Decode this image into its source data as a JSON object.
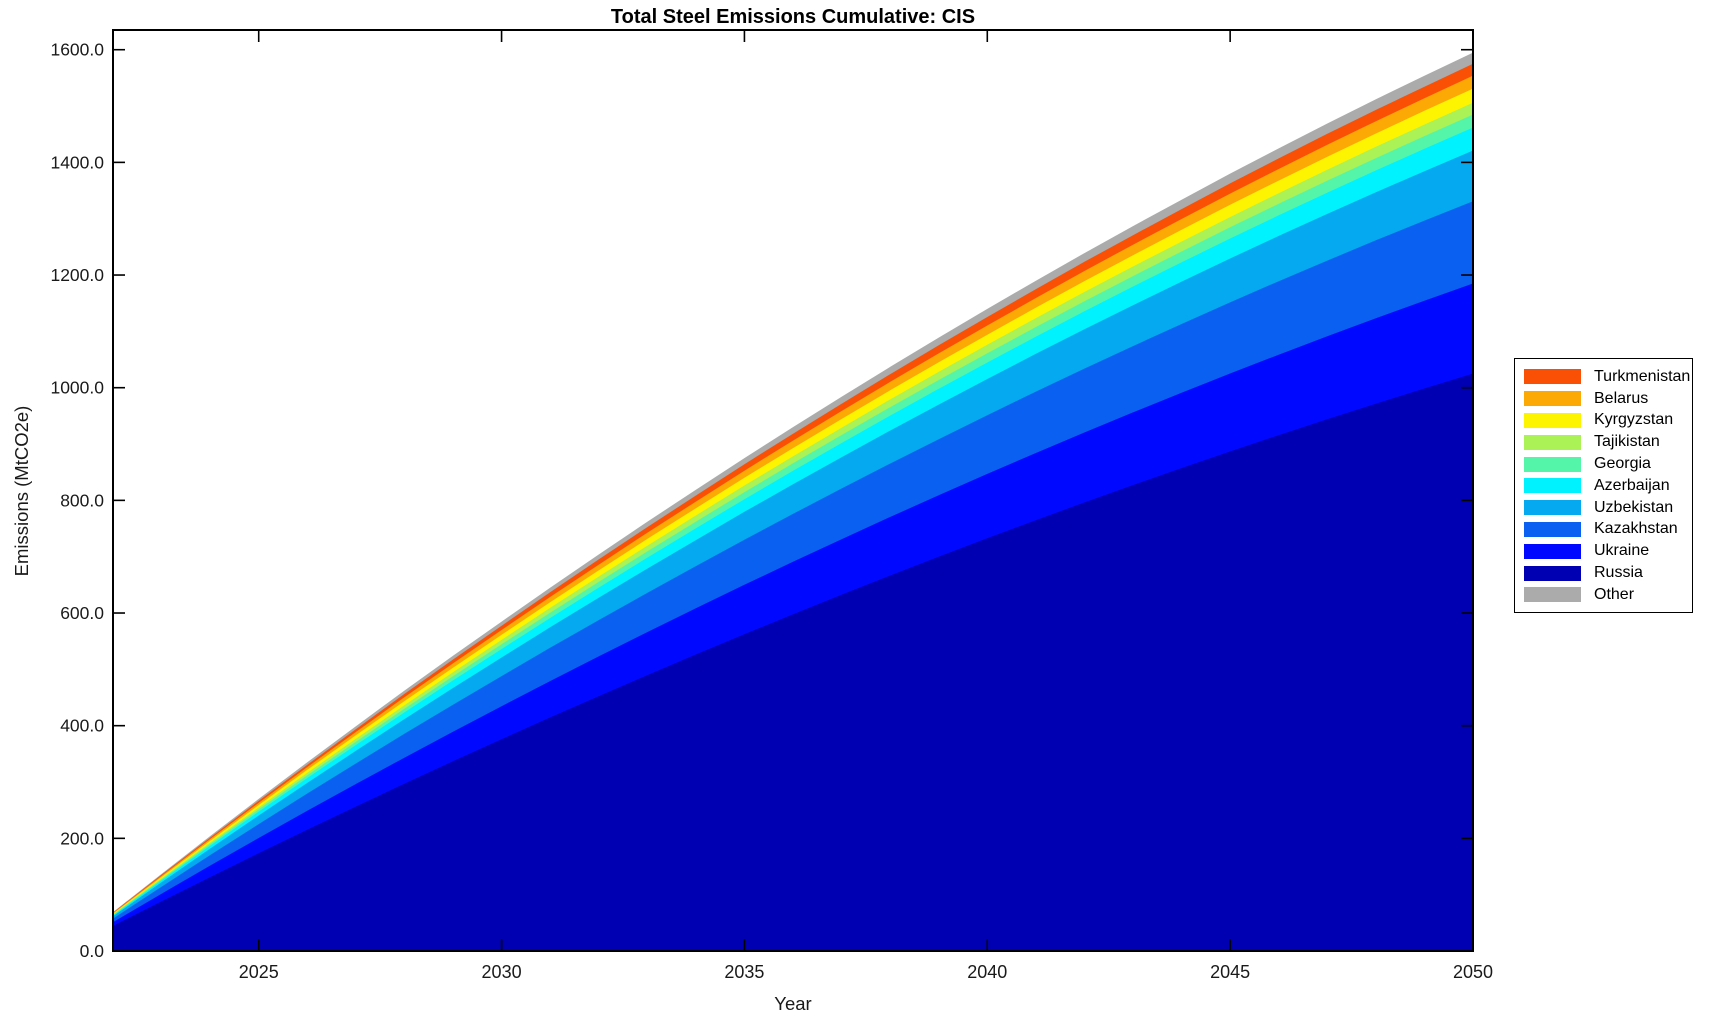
{
  "chart_data": {
    "type": "area",
    "stacked": true,
    "title": "Total Steel Emissions Cumulative: CIS",
    "xlabel": "Year",
    "ylabel": "Emissions (MtCO2e)",
    "xlim": [
      2022,
      2050
    ],
    "ylim": [
      0,
      1635
    ],
    "grid": false,
    "x_ticks": [
      "2025",
      "2030",
      "2035",
      "2040",
      "2045",
      "2050"
    ],
    "x_tick_values": [
      2025,
      2030,
      2035,
      2040,
      2045,
      2050
    ],
    "y_ticks": [
      "0.0",
      "200.0",
      "400.0",
      "600.0",
      "800.0",
      "1000.0",
      "1200.0",
      "1400.0",
      "1600.0"
    ],
    "y_tick_values": [
      0,
      200,
      400,
      600,
      800,
      1000,
      1200,
      1400,
      1600
    ],
    "x": [
      2022,
      2023,
      2024,
      2025,
      2026,
      2027,
      2028,
      2029,
      2030,
      2031,
      2032,
      2033,
      2034,
      2035,
      2036,
      2037,
      2038,
      2039,
      2040,
      2041,
      2042,
      2043,
      2044,
      2045,
      2046,
      2047,
      2048,
      2049,
      2050
    ],
    "series": [
      {
        "name": "Russia",
        "color": "#0000B2",
        "values": [
          44.3,
          88.0,
          131.1,
          173.5,
          215.3,
          256.4,
          296.9,
          336.7,
          375.9,
          414.5,
          452.4,
          489.7,
          526.3,
          562.3,
          597.6,
          632.3,
          666.4,
          699.8,
          732.6,
          764.7,
          796.2,
          827.0,
          857.2,
          886.8,
          915.7,
          944.0,
          971.6,
          998.6,
          1025.0
        ]
      },
      {
        "name": "Ukraine",
        "color": "#0008FF",
        "values": [
          6.9,
          13.7,
          20.5,
          27.1,
          33.6,
          40.0,
          46.3,
          52.6,
          58.7,
          64.7,
          70.6,
          76.4,
          82.1,
          87.8,
          93.3,
          98.7,
          104.0,
          109.2,
          114.3,
          119.4,
          124.3,
          129.1,
          133.8,
          138.4,
          142.9,
          147.3,
          151.7,
          155.9,
          160.0
        ]
      },
      {
        "name": "Kazakhstan",
        "color": "#0A60F0",
        "values": [
          6.3,
          12.5,
          18.7,
          24.7,
          30.7,
          36.5,
          42.3,
          48.0,
          53.5,
          59.0,
          64.4,
          69.7,
          74.9,
          80.1,
          85.1,
          90.0,
          94.9,
          99.6,
          104.3,
          108.9,
          113.4,
          117.8,
          122.1,
          126.3,
          130.4,
          134.4,
          138.3,
          142.2,
          146.0
        ]
      },
      {
        "name": "Uzbekistan",
        "color": "#05A9F0",
        "values": [
          3.9,
          7.7,
          11.5,
          15.2,
          18.9,
          22.5,
          26.1,
          29.6,
          33.0,
          36.4,
          39.7,
          43.0,
          46.2,
          49.4,
          52.5,
          55.5,
          58.5,
          61.4,
          64.3,
          67.1,
          69.9,
          72.6,
          75.2,
          77.8,
          80.4,
          82.9,
          85.3,
          87.6,
          90.0
        ]
      },
      {
        "name": "Azerbaijan",
        "color": "#00F2FF",
        "values": [
          1.8,
          3.5,
          5.2,
          6.9,
          8.6,
          10.3,
          11.9,
          13.5,
          15.0,
          16.6,
          18.1,
          19.6,
          21.0,
          22.5,
          23.9,
          25.3,
          26.7,
          28.0,
          29.3,
          30.6,
          31.8,
          33.1,
          34.3,
          35.5,
          36.6,
          37.8,
          38.9,
          39.9,
          41.0
        ]
      },
      {
        "name": "Georgia",
        "color": "#55F5A9",
        "values": [
          1.0,
          2.0,
          2.9,
          3.9,
          4.8,
          5.7,
          6.7,
          7.5,
          8.4,
          9.3,
          10.1,
          11.0,
          11.8,
          12.6,
          13.4,
          14.2,
          14.9,
          15.7,
          16.4,
          17.1,
          17.8,
          18.5,
          19.2,
          19.9,
          20.5,
          21.2,
          21.8,
          22.4,
          23.0
        ]
      },
      {
        "name": "Tajikistan",
        "color": "#AAF255",
        "values": [
          0.9,
          1.8,
          2.7,
          3.6,
          4.4,
          5.3,
          6.1,
          6.9,
          7.7,
          8.5,
          9.3,
          10.1,
          10.8,
          11.6,
          12.3,
          13.0,
          13.7,
          14.4,
          15.0,
          15.7,
          16.4,
          17.0,
          17.6,
          18.2,
          18.8,
          19.4,
          20.0,
          20.5,
          21.0
        ]
      },
      {
        "name": "Kyrgyzstan",
        "color": "#FCF400",
        "values": [
          1.1,
          2.2,
          3.2,
          4.2,
          5.3,
          6.3,
          7.3,
          8.2,
          9.2,
          10.1,
          11.1,
          12.0,
          12.9,
          13.7,
          14.6,
          15.4,
          16.3,
          17.1,
          17.9,
          18.7,
          19.5,
          20.2,
          20.9,
          21.7,
          22.4,
          23.1,
          23.7,
          24.4,
          25.0
        ]
      },
      {
        "name": "Belarus",
        "color": "#FCA805",
        "values": [
          1.0,
          2.0,
          2.9,
          3.9,
          4.8,
          5.7,
          6.7,
          7.5,
          8.4,
          9.3,
          10.1,
          11.0,
          11.8,
          12.6,
          13.4,
          14.2,
          14.9,
          15.7,
          16.4,
          17.1,
          17.8,
          18.5,
          19.2,
          19.9,
          20.5,
          21.2,
          21.8,
          22.4,
          23.0
        ]
      },
      {
        "name": "Turkmenistan",
        "color": "#FA5005",
        "values": [
          0.9,
          1.8,
          2.7,
          3.6,
          4.4,
          5.3,
          6.1,
          6.9,
          7.7,
          8.5,
          9.3,
          10.1,
          10.8,
          11.6,
          12.3,
          13.0,
          13.7,
          14.4,
          15.0,
          15.7,
          16.4,
          17.0,
          17.6,
          18.2,
          18.8,
          19.4,
          20.0,
          20.5,
          21.0
        ]
      },
      {
        "name": "Other",
        "color": "#ABABAB",
        "values": [
          0.9,
          1.7,
          2.6,
          3.4,
          4.2,
          5.0,
          5.8,
          6.6,
          7.3,
          8.1,
          8.8,
          9.5,
          10.2,
          10.9,
          11.6,
          12.3,
          13.0,
          13.6,
          14.3,
          14.9,
          15.5,
          16.1,
          16.7,
          17.3,
          17.8,
          18.4,
          18.9,
          19.4,
          19.9
        ]
      }
    ],
    "legend": {
      "position": "right-outside",
      "items": [
        "Turkmenistan",
        "Belarus",
        "Kyrgyzstan",
        "Tajikistan",
        "Georgia",
        "Azerbaijan",
        "Uzbekistan",
        "Kazakhstan",
        "Ukraine",
        "Russia",
        "Other"
      ]
    },
    "axis_color": "#000000",
    "background_color": "#FFFFFF"
  }
}
